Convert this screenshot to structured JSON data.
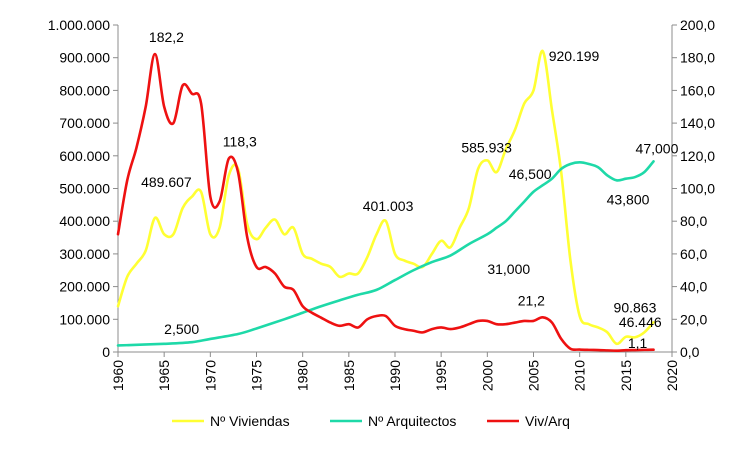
{
  "chart_data": {
    "type": "line",
    "x_axis": {
      "min": 1960,
      "max": 2020,
      "step": 5,
      "tick_labels": [
        "1960",
        "1965",
        "1970",
        "1975",
        "1980",
        "1985",
        "1990",
        "1995",
        "2000",
        "2005",
        "2010",
        "2015",
        "2020"
      ]
    },
    "y_left": {
      "min": 0,
      "max": 1000000,
      "step": 100000,
      "tick_labels": [
        "0",
        "100.000",
        "200.000",
        "300.000",
        "400.000",
        "500.000",
        "600.000",
        "700.000",
        "800.000",
        "900.000",
        "1.000.000"
      ]
    },
    "y_right": {
      "min": 0,
      "max": 200,
      "step": 20,
      "tick_labels": [
        "0,0",
        "20,0",
        "40,0",
        "60,0",
        "80,0",
        "100,0",
        "120,0",
        "140,0",
        "160,0",
        "180,0",
        "200,0"
      ]
    },
    "grid": false,
    "legend_position": "bottom",
    "series": [
      {
        "name": "Nº Viviendas",
        "axis": "left",
        "color": "#FFFF33",
        "x": [
          1960,
          1961,
          1962,
          1963,
          1964,
          1965,
          1966,
          1967,
          1968,
          1969,
          1970,
          1971,
          1972,
          1973,
          1974,
          1975,
          1976,
          1977,
          1978,
          1979,
          1980,
          1981,
          1982,
          1983,
          1984,
          1985,
          1986,
          1987,
          1988,
          1989,
          1990,
          1991,
          1992,
          1993,
          1994,
          1995,
          1996,
          1997,
          1998,
          1999,
          2000,
          2001,
          2002,
          2003,
          2004,
          2005,
          2006,
          2007,
          2008,
          2009,
          2010,
          2011,
          2012,
          2013,
          2014,
          2015,
          2016,
          2017,
          2018
        ],
        "values": [
          140000,
          230000,
          270000,
          310000,
          410000,
          360000,
          360000,
          440000,
          475000,
          489607,
          360000,
          380000,
          540000,
          560000,
          390000,
          345000,
          380000,
          405000,
          360000,
          380000,
          300000,
          285000,
          270000,
          260000,
          230000,
          240000,
          240000,
          290000,
          360000,
          401003,
          300000,
          280000,
          270000,
          260000,
          300000,
          340000,
          320000,
          380000,
          440000,
          560000,
          585933,
          550000,
          620000,
          680000,
          760000,
          800000,
          920199,
          740000,
          550000,
          280000,
          110000,
          85000,
          75000,
          60000,
          25000,
          46446,
          45000,
          60000,
          90863
        ]
      },
      {
        "name": "Nº Arquitectos",
        "axis": "left",
        "color": "#1ED9A8",
        "x": [
          1960,
          1965,
          1968,
          1970,
          1973,
          1975,
          1978,
          1980,
          1982,
          1984,
          1986,
          1988,
          1990,
          1992,
          1994,
          1996,
          1998,
          2000,
          2001,
          2002,
          2003,
          2004,
          2005,
          2006,
          2007,
          2008,
          2009,
          2010,
          2011,
          2012,
          2013,
          2014,
          2015,
          2016,
          2017,
          2018
        ],
        "values": [
          20000,
          25000,
          30000,
          40000,
          55000,
          72000,
          100000,
          120000,
          140000,
          158000,
          175000,
          190000,
          220000,
          250000,
          275000,
          295000,
          330000,
          360000,
          380000,
          400000,
          430000,
          460000,
          490000,
          510000,
          530000,
          560000,
          575000,
          580000,
          575000,
          565000,
          540000,
          525000,
          530000,
          535000,
          550000,
          583000
        ]
      },
      {
        "name": "Viv/Arq",
        "axis": "right",
        "color": "#EE1111",
        "x": [
          1960,
          1961,
          1962,
          1963,
          1964,
          1965,
          1966,
          1967,
          1968,
          1969,
          1970,
          1971,
          1972,
          1973,
          1974,
          1975,
          1976,
          1977,
          1978,
          1979,
          1980,
          1981,
          1982,
          1983,
          1984,
          1985,
          1986,
          1987,
          1988,
          1989,
          1990,
          1991,
          1992,
          1993,
          1994,
          1995,
          1996,
          1997,
          1998,
          1999,
          2000,
          2001,
          2002,
          2003,
          2004,
          2005,
          2006,
          2007,
          2008,
          2009,
          2010,
          2011,
          2012,
          2013,
          2014,
          2015,
          2016,
          2017,
          2018
        ],
        "values": [
          72,
          105,
          125,
          150,
          182.2,
          150,
          140,
          163,
          158,
          152,
          95,
          92,
          118.3,
          110,
          70,
          52,
          52,
          48,
          40,
          38,
          28,
          24,
          21,
          18,
          16,
          17,
          15,
          20,
          22,
          22,
          16,
          14,
          13,
          12,
          14,
          15,
          14,
          15,
          17,
          19,
          19,
          17,
          17,
          18,
          19,
          19,
          21.2,
          18,
          8,
          2,
          1.5,
          1.3,
          1.2,
          1,
          0.8,
          1.1,
          1.2,
          1.3,
          1.4
        ]
      }
    ],
    "annotations": [
      {
        "text": "182,2",
        "x": 1964,
        "axis": "right",
        "y": 182.2
      },
      {
        "text": "118,3",
        "x": 1972,
        "axis": "right",
        "y": 118.3
      },
      {
        "text": "489.607",
        "x": 1969,
        "axis": "left",
        "y": 489607
      },
      {
        "text": "2,500",
        "x": 1965,
        "axis": "left",
        "y": 25000
      },
      {
        "text": "401.003",
        "x": 1989,
        "axis": "left",
        "y": 401003
      },
      {
        "text": "585.933",
        "x": 2000,
        "axis": "left",
        "y": 585933
      },
      {
        "text": "31,000",
        "x": 2000,
        "axis": "left",
        "y": 330000
      },
      {
        "text": "920.199",
        "x": 2006,
        "axis": "left",
        "y": 920199
      },
      {
        "text": "46,500",
        "x": 2006,
        "axis": "left",
        "y": 510000
      },
      {
        "text": "43,800",
        "x": 2014,
        "axis": "left",
        "y": 525000
      },
      {
        "text": "47,000",
        "x": 2018,
        "axis": "left",
        "y": 583000
      },
      {
        "text": "21,2",
        "x": 2006,
        "axis": "right",
        "y": 21.2
      },
      {
        "text": "46.446",
        "x": 2015,
        "axis": "left",
        "y": 46446
      },
      {
        "text": "90.863",
        "x": 2018,
        "axis": "left",
        "y": 90863
      },
      {
        "text": "1,1",
        "x": 2015,
        "axis": "right",
        "y": 1.1
      }
    ]
  }
}
